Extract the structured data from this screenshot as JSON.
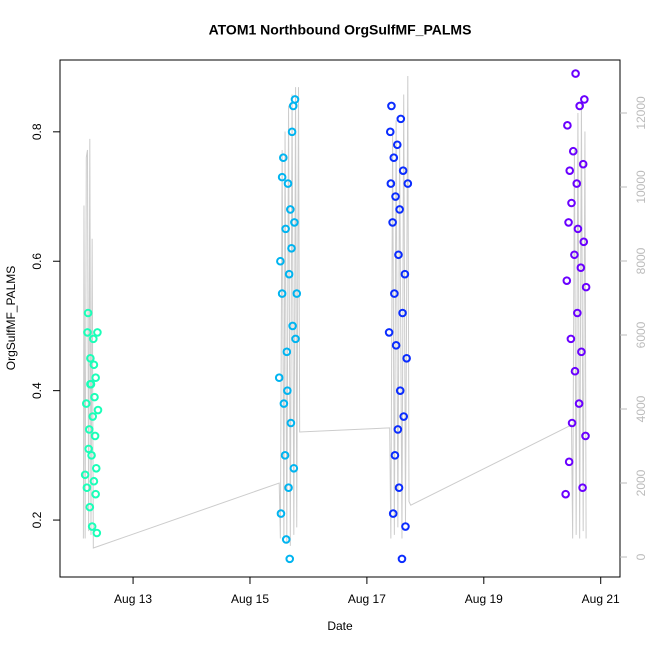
{
  "chart_data": {
    "type": "scatter",
    "title": "ATOM1 Northbound OrgSulfMF_PALMS",
    "xlabel": "Date",
    "ylabel": "OrgSulfMF_PALMS",
    "xlim": [
      11.75,
      21.33
    ],
    "xticks": [
      {
        "value": 13,
        "label": "Aug 13"
      },
      {
        "value": 15,
        "label": "Aug 15"
      },
      {
        "value": 17,
        "label": "Aug 17"
      },
      {
        "value": 19,
        "label": "Aug 19"
      },
      {
        "value": 21,
        "label": "Aug 21"
      }
    ],
    "ylim": [
      0.112,
      0.911
    ],
    "yticks": [
      0.2,
      0.4,
      0.6,
      0.8
    ],
    "y2lim": [
      -540,
      13432
    ],
    "y2ticks": [
      0,
      2000,
      4000,
      6000,
      8000,
      10000,
      12000
    ],
    "y2color": "#bbbbbb",
    "series": [
      {
        "axis": "y2",
        "color": "#cccccc",
        "x": [
          12.15,
          12.16,
          12.18,
          12.2,
          12.22,
          12.24,
          12.26,
          12.28,
          12.3,
          12.32,
          15.5,
          15.52,
          15.55,
          15.58,
          15.6,
          15.63,
          15.66,
          15.69,
          15.72,
          15.75,
          15.78,
          15.8,
          15.83,
          15.85,
          17.39,
          17.41,
          17.44,
          17.47,
          17.5,
          17.53,
          17.56,
          17.6,
          17.63,
          17.66,
          17.7,
          17.72,
          17.75,
          20.5,
          20.52,
          20.55,
          20.58,
          20.61,
          20.64,
          20.67,
          20.7,
          20.73,
          20.75
        ],
        "values": [
          500,
          9500,
          500,
          10800,
          11000,
          700,
          11300,
          600,
          8600,
          243,
          2000,
          500,
          11000,
          500,
          11500,
          400,
          12200,
          300,
          12500,
          600,
          12700,
          800,
          12700,
          3380,
          3490,
          500,
          11500,
          600,
          11800,
          800,
          11200,
          500,
          12500,
          900,
          13000,
          1500,
          1400,
          3570,
          500,
          11000,
          600,
          12000,
          500,
          12300,
          700,
          11500,
          500
        ]
      },
      {
        "color": "#1affb8",
        "x": [
          12.18,
          12.2,
          12.22,
          12.23,
          12.25,
          12.26,
          12.27,
          12.28,
          12.29,
          12.3,
          12.31,
          12.32,
          12.33,
          12.34,
          12.35,
          12.36,
          12.37,
          12.38,
          12.39,
          12.4,
          12.21,
          12.24,
          12.27,
          12.33,
          12.36
        ],
        "values": [
          0.27,
          0.38,
          0.49,
          0.52,
          0.34,
          0.22,
          0.45,
          0.41,
          0.3,
          0.19,
          0.36,
          0.48,
          0.26,
          0.39,
          0.33,
          0.42,
          0.28,
          0.18,
          0.49,
          0.37,
          0.25,
          0.31,
          0.41,
          0.44,
          0.24
        ]
      },
      {
        "color": "#00b4f0",
        "x": [
          15.5,
          15.52,
          15.53,
          15.55,
          15.57,
          15.58,
          15.6,
          15.61,
          15.62,
          15.63,
          15.65,
          15.66,
          15.67,
          15.68,
          15.69,
          15.7,
          15.71,
          15.72,
          15.73,
          15.74,
          15.75,
          15.76,
          15.77,
          15.78,
          15.8,
          15.55,
          15.64
        ],
        "values": [
          0.42,
          0.6,
          0.21,
          0.55,
          0.76,
          0.38,
          0.3,
          0.65,
          0.17,
          0.46,
          0.72,
          0.25,
          0.58,
          0.14,
          0.68,
          0.35,
          0.62,
          0.8,
          0.5,
          0.84,
          0.28,
          0.66,
          0.85,
          0.48,
          0.55,
          0.73,
          0.4
        ]
      },
      {
        "color": "#0a2cff",
        "x": [
          17.38,
          17.4,
          17.41,
          17.42,
          17.44,
          17.45,
          17.46,
          17.47,
          17.48,
          17.49,
          17.5,
          17.52,
          17.53,
          17.54,
          17.55,
          17.56,
          17.57,
          17.58,
          17.6,
          17.61,
          17.62,
          17.63,
          17.65,
          17.66,
          17.68,
          17.7
        ],
        "values": [
          0.49,
          0.8,
          0.72,
          0.84,
          0.66,
          0.21,
          0.76,
          0.55,
          0.3,
          0.7,
          0.47,
          0.78,
          0.34,
          0.61,
          0.25,
          0.68,
          0.4,
          0.82,
          0.14,
          0.52,
          0.74,
          0.36,
          0.58,
          0.19,
          0.45,
          0.72
        ]
      },
      {
        "color": "#6a00ff",
        "x": [
          20.4,
          20.42,
          20.43,
          20.45,
          20.46,
          20.47,
          20.49,
          20.5,
          20.51,
          20.53,
          20.55,
          20.56,
          20.57,
          20.59,
          20.6,
          20.61,
          20.63,
          20.64,
          20.66,
          20.67,
          20.69,
          20.7,
          20.71,
          20.72,
          20.74,
          20.75
        ],
        "values": [
          0.24,
          0.57,
          0.81,
          0.66,
          0.29,
          0.74,
          0.48,
          0.69,
          0.35,
          0.77,
          0.61,
          0.43,
          0.89,
          0.72,
          0.52,
          0.65,
          0.38,
          0.84,
          0.59,
          0.46,
          0.25,
          0.75,
          0.63,
          0.85,
          0.33,
          0.56
        ]
      }
    ]
  }
}
